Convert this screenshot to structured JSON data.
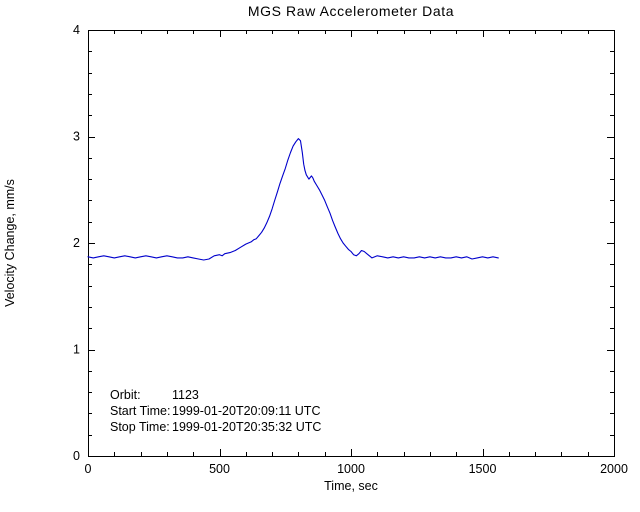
{
  "chart_data": {
    "type": "line",
    "title": "MGS Raw Accelerometer Data",
    "xlabel": "Time, sec",
    "ylabel": "Velocity Change, mm/s",
    "xlim": [
      0,
      2000
    ],
    "ylim": [
      0,
      4
    ],
    "xticks": [
      0,
      500,
      1000,
      1500,
      2000
    ],
    "yticks": [
      0,
      1,
      2,
      3,
      4
    ],
    "xminor": 100,
    "yminor": 0.2,
    "grid": false,
    "legend": "none",
    "line_color": "#0000CC",
    "axis_color": "#000000",
    "series": [
      {
        "name": "velocity_change_mm_s",
        "points": [
          [
            0,
            1.87
          ],
          [
            20,
            1.86
          ],
          [
            40,
            1.87
          ],
          [
            60,
            1.88
          ],
          [
            80,
            1.87
          ],
          [
            100,
            1.86
          ],
          [
            120,
            1.87
          ],
          [
            140,
            1.88
          ],
          [
            160,
            1.87
          ],
          [
            180,
            1.86
          ],
          [
            200,
            1.87
          ],
          [
            220,
            1.88
          ],
          [
            240,
            1.87
          ],
          [
            260,
            1.86
          ],
          [
            280,
            1.87
          ],
          [
            300,
            1.88
          ],
          [
            320,
            1.87
          ],
          [
            340,
            1.86
          ],
          [
            360,
            1.86
          ],
          [
            380,
            1.87
          ],
          [
            400,
            1.86
          ],
          [
            420,
            1.85
          ],
          [
            440,
            1.84
          ],
          [
            460,
            1.85
          ],
          [
            480,
            1.88
          ],
          [
            500,
            1.89
          ],
          [
            510,
            1.88
          ],
          [
            520,
            1.9
          ],
          [
            540,
            1.91
          ],
          [
            560,
            1.93
          ],
          [
            580,
            1.96
          ],
          [
            600,
            1.99
          ],
          [
            610,
            2.0
          ],
          [
            620,
            2.01
          ],
          [
            630,
            2.03
          ],
          [
            640,
            2.04
          ],
          [
            650,
            2.07
          ],
          [
            660,
            2.1
          ],
          [
            670,
            2.14
          ],
          [
            680,
            2.19
          ],
          [
            690,
            2.25
          ],
          [
            700,
            2.32
          ],
          [
            710,
            2.4
          ],
          [
            720,
            2.48
          ],
          [
            730,
            2.56
          ],
          [
            740,
            2.63
          ],
          [
            750,
            2.7
          ],
          [
            760,
            2.78
          ],
          [
            770,
            2.85
          ],
          [
            780,
            2.91
          ],
          [
            790,
            2.95
          ],
          [
            800,
            2.98
          ],
          [
            808,
            2.96
          ],
          [
            815,
            2.85
          ],
          [
            820,
            2.74
          ],
          [
            825,
            2.68
          ],
          [
            830,
            2.64
          ],
          [
            840,
            2.6
          ],
          [
            850,
            2.63
          ],
          [
            855,
            2.61
          ],
          [
            860,
            2.58
          ],
          [
            870,
            2.54
          ],
          [
            880,
            2.5
          ],
          [
            890,
            2.45
          ],
          [
            900,
            2.4
          ],
          [
            910,
            2.34
          ],
          [
            920,
            2.28
          ],
          [
            930,
            2.21
          ],
          [
            940,
            2.15
          ],
          [
            950,
            2.09
          ],
          [
            960,
            2.04
          ],
          [
            970,
            2.0
          ],
          [
            980,
            1.97
          ],
          [
            990,
            1.94
          ],
          [
            1000,
            1.92
          ],
          [
            1010,
            1.89
          ],
          [
            1020,
            1.88
          ],
          [
            1030,
            1.9
          ],
          [
            1040,
            1.93
          ],
          [
            1050,
            1.92
          ],
          [
            1060,
            1.9
          ],
          [
            1070,
            1.88
          ],
          [
            1080,
            1.86
          ],
          [
            1100,
            1.88
          ],
          [
            1120,
            1.87
          ],
          [
            1140,
            1.86
          ],
          [
            1160,
            1.87
          ],
          [
            1180,
            1.86
          ],
          [
            1200,
            1.87
          ],
          [
            1220,
            1.86
          ],
          [
            1240,
            1.86
          ],
          [
            1260,
            1.87
          ],
          [
            1280,
            1.86
          ],
          [
            1300,
            1.87
          ],
          [
            1320,
            1.86
          ],
          [
            1340,
            1.87
          ],
          [
            1360,
            1.86
          ],
          [
            1380,
            1.86
          ],
          [
            1400,
            1.87
          ],
          [
            1420,
            1.86
          ],
          [
            1440,
            1.87
          ],
          [
            1460,
            1.85
          ],
          [
            1480,
            1.86
          ],
          [
            1500,
            1.87
          ],
          [
            1520,
            1.86
          ],
          [
            1540,
            1.87
          ],
          [
            1560,
            1.86
          ]
        ]
      }
    ]
  },
  "annotations": [
    {
      "label": "Orbit:",
      "value": "1123"
    },
    {
      "label": "Start Time:",
      "value": "1999-01-20T20:09:11 UTC"
    },
    {
      "label": "Stop Time:",
      "value": "1999-01-20T20:35:32 UTC"
    }
  ]
}
